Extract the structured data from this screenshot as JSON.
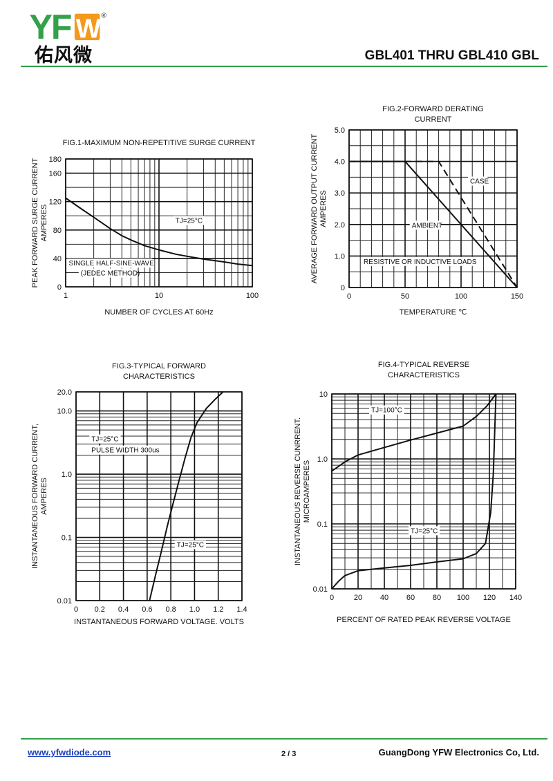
{
  "header": {
    "logo_text": "YFW",
    "logo_registered": "®",
    "logo_chinese": "佑风微",
    "title": "GBL401 THRU GBL410  GBL"
  },
  "colors": {
    "brand_green": "#33a04a",
    "brand_blue": "#1e5fb4",
    "brand_orange": "#f39a1e",
    "link": "#1d3fb8"
  },
  "chart_data": [
    {
      "type": "line",
      "title": "FIG.1-MAXIMUM NON-REPETITIVE SURGE CURRENT",
      "xlabel": "NUMBER OF CYCLES AT 60Hz",
      "ylabel": [
        "PEAK FORWARD  SURGE CURRENT",
        "AMPERES"
      ],
      "xscale": "log",
      "xlim": [
        1,
        100
      ],
      "ylim": [
        0,
        180
      ],
      "xticks": [
        1,
        10,
        100
      ],
      "xtick_labels": [
        "1",
        "10",
        "100"
      ],
      "yticks": [
        0,
        40,
        80,
        120,
        160,
        180
      ],
      "ytick_labels": [
        "0",
        "40",
        "80",
        "120",
        "160",
        "180"
      ],
      "grid": true,
      "annotations": [
        {
          "text": "TJ=25°C",
          "at": [
            15,
            90
          ]
        },
        {
          "text": "SINGLE HALF-SINE-WAVE",
          "at": [
            1.08,
            30
          ]
        },
        {
          "text": "(JEDEC METHOD)",
          "at": [
            1.45,
            16
          ]
        }
      ],
      "series": [
        {
          "x": [
            1,
            1.5,
            2,
            3,
            4,
            5,
            7,
            10,
            15,
            20,
            30,
            50,
            70,
            100
          ],
          "y": [
            125,
            109,
            98,
            82,
            72,
            66,
            58,
            52,
            46,
            43,
            39,
            35,
            32,
            30
          ]
        }
      ]
    },
    {
      "type": "line",
      "title": [
        "FIG.2-FORWARD DERATING",
        "CURRENT"
      ],
      "xlabel": "TEMPERATURE ℃",
      "ylabel": [
        "AVERAGE FORWARD OUTPUT CURRENT",
        "AMPERES"
      ],
      "xlim": [
        0,
        150
      ],
      "ylim": [
        0,
        5.0
      ],
      "xticks": [
        0,
        50,
        100,
        150
      ],
      "xtick_labels": [
        "0",
        "50",
        "100",
        "150"
      ],
      "yticks": [
        0,
        1.0,
        2.0,
        3.0,
        4.0,
        5.0
      ],
      "ytick_labels": [
        "0",
        "1.0",
        "2.0",
        "3.0",
        "4.0",
        "5.0"
      ],
      "grid": true,
      "annotations": [
        {
          "text": "CASE",
          "at": [
            108,
            3.3
          ]
        },
        {
          "text": "AMBIENT",
          "at": [
            56,
            1.9
          ]
        },
        {
          "text": "RESISTIVE OR INDUCTIVE LOADS",
          "at": [
            13,
            0.75
          ]
        }
      ],
      "series": [
        {
          "name": "AMBIENT",
          "style": "solid",
          "x": [
            0,
            50,
            150
          ],
          "y": [
            4.0,
            4.0,
            0
          ]
        },
        {
          "name": "CASE",
          "style": "dashed",
          "x": [
            0,
            80,
            150
          ],
          "y": [
            4.0,
            4.0,
            0
          ]
        }
      ]
    },
    {
      "type": "line",
      "title": [
        "FIG.3-TYPICAL FORWARD",
        "CHARACTERISTICS"
      ],
      "xlabel": "INSTANTANEOUS FORWARD VOLTAGE. VOLTS",
      "ylabel": [
        "INSTANTANEOUS FORWARD CURRENT,",
        "AMPERES"
      ],
      "xlim": [
        0,
        1.4
      ],
      "yscale": "log",
      "ylim": [
        0.01,
        20
      ],
      "xticks": [
        0,
        0.2,
        0.4,
        0.6,
        0.8,
        1.0,
        1.2,
        1.4
      ],
      "xtick_labels": [
        "0",
        "0.2",
        "0.4",
        "0.6",
        "0.8",
        "1.0",
        "1.2",
        "1.4"
      ],
      "yticks": [
        0.01,
        0.1,
        1.0,
        10.0,
        20.0
      ],
      "ytick_labels": [
        "0.01",
        "0.1",
        "1.0",
        "10.0",
        "20.0"
      ],
      "grid": true,
      "annotations": [
        {
          "text": "TJ=25°C",
          "at": [
            0.13,
            3.3
          ]
        },
        {
          "text": "PULSE WIDTH 300us",
          "at": [
            0.13,
            2.2
          ]
        },
        {
          "text": "TJ=25°C",
          "at": [
            0.85,
            0.07
          ]
        }
      ],
      "series": [
        {
          "x": [
            0.62,
            0.67,
            0.72,
            0.77,
            0.82,
            0.87,
            0.92,
            0.97,
            1.02,
            1.1,
            1.17,
            1.24
          ],
          "y": [
            0.01,
            0.025,
            0.06,
            0.15,
            0.35,
            0.8,
            1.8,
            3.8,
            6.5,
            11,
            15,
            20
          ]
        }
      ]
    },
    {
      "type": "line",
      "title": [
        "FIG.4-TYPICAL REVERSE",
        "CHARACTERISTICS"
      ],
      "xlabel": "PERCENT OF RATED PEAK  REVERSE VOLTAGE",
      "ylabel": [
        "INSTANTANEOUS REVERSE CUNRRENT.",
        "MICROAMPERES"
      ],
      "xlim": [
        0,
        140
      ],
      "yscale": "log",
      "ylim": [
        0.01,
        10
      ],
      "xticks": [
        0,
        20,
        40,
        60,
        80,
        100,
        120,
        140
      ],
      "xtick_labels": [
        "0",
        "20",
        "40",
        "60",
        "80",
        "100",
        "120",
        "140"
      ],
      "yticks": [
        0.01,
        0.1,
        1.0,
        10
      ],
      "ytick_labels": [
        "0.01",
        "0.1",
        "1.0",
        "10"
      ],
      "grid": true,
      "annotations": [
        {
          "text": "TJ=100°C",
          "at": [
            30,
            5.2
          ]
        },
        {
          "text": "TJ=25°C",
          "at": [
            60,
            0.072
          ]
        }
      ],
      "series": [
        {
          "name": "TJ=100°C",
          "x": [
            0,
            10,
            20,
            40,
            60,
            80,
            100,
            110,
            118,
            122,
            125
          ],
          "y": [
            0.65,
            0.9,
            1.15,
            1.5,
            1.95,
            2.5,
            3.2,
            4.5,
            6.5,
            8.3,
            10
          ]
        },
        {
          "name": "TJ=25°C",
          "x": [
            0,
            5,
            10,
            20,
            40,
            60,
            80,
            100,
            110,
            117,
            121,
            123,
            124,
            125
          ],
          "y": [
            0.01,
            0.013,
            0.016,
            0.019,
            0.021,
            0.023,
            0.026,
            0.029,
            0.035,
            0.05,
            0.15,
            0.6,
            2.5,
            10
          ]
        }
      ]
    }
  ],
  "footer": {
    "website": "www.yfwdiode.com",
    "page": "2 / 3",
    "company": "GuangDong YFW Electronics Co, Ltd."
  }
}
